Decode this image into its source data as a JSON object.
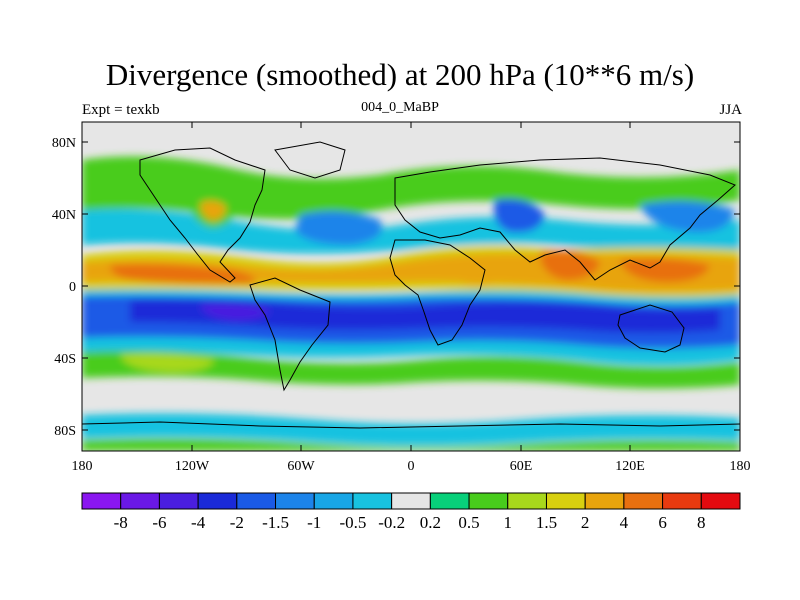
{
  "title": "Divergence (smoothed) at 200 hPa (10**6 m/s)",
  "subtitle_left": "Expt = texkb",
  "subtitle_center": "004_0_MaBP",
  "subtitle_right": "JJA",
  "map": {
    "lat_ticks": [
      "80N",
      "40N",
      "0",
      "40S",
      "80S"
    ],
    "lon_ticks": [
      "180",
      "120W",
      "60W",
      "0",
      "60E",
      "120E",
      "180"
    ]
  },
  "colorbar": {
    "labels": [
      "-8",
      "-6",
      "-4",
      "-2",
      "-1.5",
      "-1",
      "-0.5",
      "-0.2",
      "0.2",
      "0.5",
      "1",
      "1.5",
      "2",
      "4",
      "6",
      "8"
    ],
    "colors": [
      "#8a16f0",
      "#6a18e6",
      "#4a1ee0",
      "#1a2ad8",
      "#1a5ae6",
      "#1c84ea",
      "#18a6e6",
      "#18c2e0",
      "#e6e6e6",
      "#08d07a",
      "#48cc1c",
      "#a8d81c",
      "#d8d010",
      "#e8a40c",
      "#e87010",
      "#e83a10",
      "#e40a10"
    ]
  }
}
